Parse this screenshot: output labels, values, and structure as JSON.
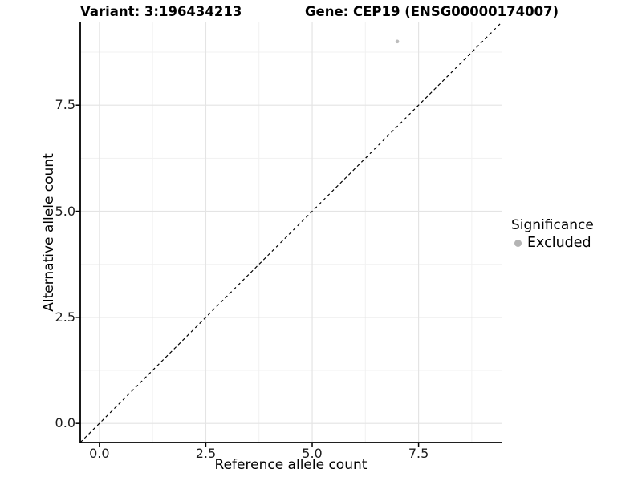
{
  "figure": {
    "background": "#ffffff"
  },
  "chart_data": {
    "type": "scatter",
    "titles": {
      "left": "Variant: 3:196434213",
      "right": "Gene: CEP19 (ENSG00000174007)"
    },
    "xlabel": "Reference allele count",
    "ylabel": "Alternative allele count",
    "xlim": [
      -0.45,
      9.45
    ],
    "ylim": [
      -0.45,
      9.45
    ],
    "x_ticks": [
      {
        "value": 0,
        "label": "0.0"
      },
      {
        "value": 2.5,
        "label": "2.5"
      },
      {
        "value": 5,
        "label": "5.0"
      },
      {
        "value": 7.5,
        "label": "7.5"
      }
    ],
    "y_ticks": [
      {
        "value": 0,
        "label": "0.0"
      },
      {
        "value": 2.5,
        "label": "2.5"
      },
      {
        "value": 5,
        "label": "5.0"
      },
      {
        "value": 7.5,
        "label": "7.5"
      }
    ],
    "x_minor": [
      1.25,
      3.75,
      6.25,
      8.75
    ],
    "y_minor": [
      1.25,
      3.75,
      6.25,
      8.75
    ],
    "grid": {
      "major_color": "#e4e4e4",
      "minor_color": "#f1f1f1",
      "background": "#ffffff"
    },
    "axis_color": "#000000",
    "identity_line": {
      "slope": 1,
      "intercept": 0,
      "style": "dashed",
      "color": "#000000"
    },
    "points": [
      {
        "x": 7,
        "y": 9,
        "series": "Excluded",
        "color": "#bdbdbd"
      }
    ],
    "legend": {
      "title": "Significance",
      "position": "right",
      "entries": [
        {
          "label": "Excluded",
          "color": "#b4b4b4",
          "marker": "circle"
        }
      ]
    }
  }
}
